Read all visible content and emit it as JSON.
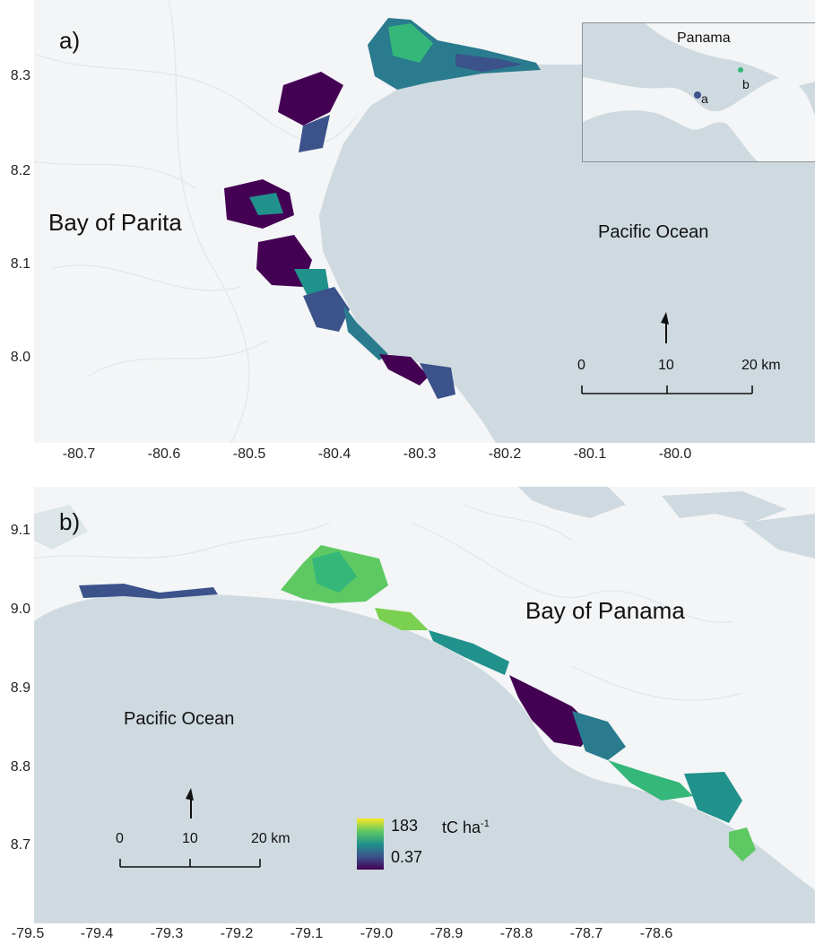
{
  "panel_a": {
    "tag": "a)",
    "bay_label": "Bay of Parita",
    "ocean_label": "Pacific Ocean",
    "inset": {
      "country_label": "Panama",
      "site_a": "a",
      "site_b": "b"
    },
    "scale": {
      "zero": "0",
      "mid": "10",
      "end": "20 km"
    },
    "y_ticks": [
      "8.3",
      "8.2",
      "8.1",
      "8.0"
    ],
    "x_ticks": [
      "-80.7",
      "-80.6",
      "-80.5",
      "-80.4",
      "-80.3",
      "-80.2",
      "-80.1",
      "-80.0"
    ]
  },
  "panel_b": {
    "tag": "b)",
    "bay_label": "Bay of Panama",
    "ocean_label": "Pacific Ocean",
    "scale": {
      "zero": "0",
      "mid": "10",
      "end": "20 km"
    },
    "y_ticks": [
      "9.1",
      "9.0",
      "8.9",
      "8.8",
      "8.7"
    ],
    "x_ticks": [
      "-79.5",
      "-79.4",
      "-79.3",
      "-79.2",
      "-79.1",
      "-79.0",
      "-78.9",
      "-78.8",
      "-78.7",
      "-78.6"
    ]
  },
  "legend": {
    "max": "183",
    "min": "0.37",
    "unit_main": "tC ha",
    "unit_sup": "-1",
    "colors": [
      "#fde725",
      "#5ec962",
      "#21918c",
      "#3b528b",
      "#440154"
    ]
  },
  "colors": {
    "ocean": "#cfdae0",
    "land": "#f3f5f6",
    "mangrove_low": "#440154",
    "mangrove_mid": "#21918c",
    "mangrove_high": "#fde725"
  }
}
